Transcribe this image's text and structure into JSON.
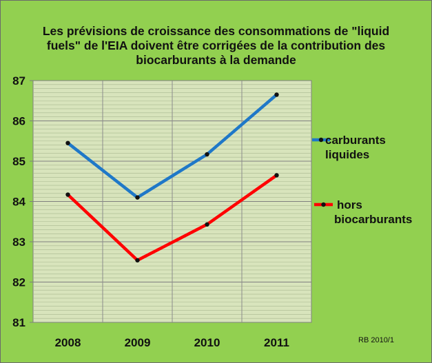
{
  "chart_data": {
    "type": "line",
    "title_lines": [
      "Les prévisions de croissance des consommations de \"liquid",
      "fuels\" de l'EIA doivent être corrigées de la contribution des",
      "biocarburants à la demande"
    ],
    "categories": [
      "2008",
      "2009",
      "2010",
      "2011"
    ],
    "ylim": [
      81,
      87
    ],
    "yticks": [
      81,
      82,
      83,
      84,
      85,
      86,
      87
    ],
    "minor_step": 0.1,
    "grid": true,
    "legend_position": "right",
    "series": [
      {
        "name": "carburants liquides",
        "name_lines": [
          "carburants",
          "liquides"
        ],
        "color": "#1f78c8",
        "values": [
          85.45,
          84.1,
          85.17,
          86.65
        ]
      },
      {
        "name": "hors biocarburants",
        "name_lines": [
          "hors",
          "biocarburants"
        ],
        "color": "#ff0000",
        "values": [
          84.17,
          82.54,
          83.43,
          84.65
        ]
      }
    ],
    "plot_background": "#d8e4bc",
    "page_background": "#92d050"
  },
  "credit": "RB 2010/1"
}
